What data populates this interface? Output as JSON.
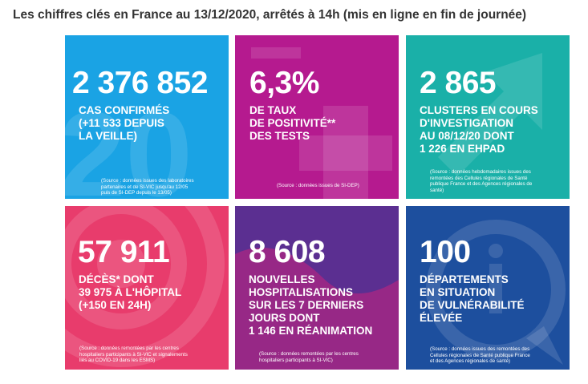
{
  "heading": "Les chiffres clés en France au 13/12/2020, arrêtés à 14h (mis en ligne en fin de journée)",
  "colors": {
    "cases_bg": "#1aa3e4",
    "positivity_bg": "#b51a8f",
    "clusters_bg": "#1ab0a8",
    "deaths_bg": "#e83c6c",
    "hospital_bg": "#5b2f91",
    "departments_bg": "#1d4f9e"
  },
  "tiles": {
    "cases": {
      "icon": "figure-20-watermark",
      "value": "2 376 852",
      "lines": [
        "CAS CONFIRMÉS",
        "(+11 533 DEPUIS",
        "LA VEILLE)"
      ],
      "source": [
        "(Source : données issues des laboratoires",
        "partenaires et de SI-VIC jusqu'au 12/05",
        "puis de SI-DEP depuis le 13/05)"
      ]
    },
    "positivity": {
      "icon": "plus-minus-watermark",
      "value": "6,3%",
      "lines": [
        "DE TAUX",
        "DE POSITIVITÉ**",
        "DES TESTS"
      ],
      "source": [
        "(Source : données issues de SI-DEP)"
      ]
    },
    "clusters": {
      "icon": "arrow-up-right-watermark",
      "value": "2 865",
      "lines": [
        "CLUSTERS EN COURS",
        "D'INVESTIGATION",
        "AU 08/12/20 DONT",
        "1 226 EN EHPAD"
      ],
      "source": [
        "(Source : données hebdomadaires issues des",
        "remontées des Cellules régionales de Santé",
        "publique France et des Agences régionales de",
        "santé)"
      ]
    },
    "deaths": {
      "icon": "target-rings-watermark",
      "value": "57 911",
      "lines": [
        "DÉCÈS* DONT",
        "39 975 À L'HÔPITAL",
        "(+150 EN 24H)"
      ],
      "source": [
        "(Source : données remontées par les centres",
        "hospitaliers participants à SI-VIC et signalements",
        "liés au COVID-19 dans les ESMS)"
      ]
    },
    "hospital": {
      "icon": "wave-blob-watermark",
      "value": "8 608",
      "lines": [
        "NOUVELLES",
        "HOSPITALISATIONS",
        "SUR LES 7 DERNIERS",
        "JOURS DONT",
        "1 146 EN RÉANIMATION"
      ],
      "source": [
        "(Source : données remontées par les centres",
        "hospitaliers participants à SI-VIC)"
      ]
    },
    "departments": {
      "icon": "info-bubble-watermark",
      "value": "100",
      "lines": [
        "DÉPARTEMENTS",
        "EN SITUATION",
        "DE VULNÉRABILITÉ",
        "ÉLEVÉE"
      ],
      "source": [
        "(Source : données issues des remontées des",
        "Cellules régionales de Santé publique France",
        "et des Agences régionales de santé)"
      ]
    }
  }
}
